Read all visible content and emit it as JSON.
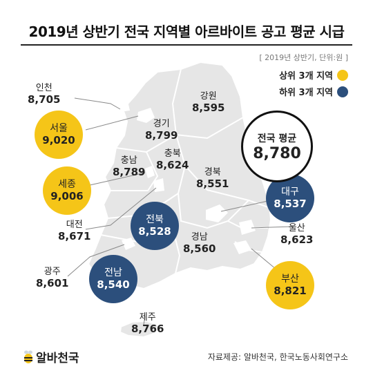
{
  "header": {
    "title": "2019년 상반기 전국 지역별 아르바이트 공고 평균 시급",
    "meta_note": "[ 2019년 상반기, 단위:원 ]"
  },
  "legend": {
    "top_label": "상위 3개 지역",
    "bottom_label": "하위 3개 지역"
  },
  "colors": {
    "top": "#f5c518",
    "bottom": "#2c4f7c",
    "map_fill": "#e6e6e6",
    "map_stroke": "#ffffff"
  },
  "average": {
    "label": "전국 평균",
    "value": "8,780"
  },
  "chart_data": {
    "type": "map",
    "unit": "원",
    "period": "2019년 상반기",
    "regions": [
      {
        "name": "인천",
        "value": 8705,
        "display": "8,705",
        "rank_group": "none"
      },
      {
        "name": "서울",
        "value": 9020,
        "display": "9,020",
        "rank_group": "top"
      },
      {
        "name": "세종",
        "value": 9006,
        "display": "9,006",
        "rank_group": "top"
      },
      {
        "name": "대전",
        "value": 8671,
        "display": "8,671",
        "rank_group": "none"
      },
      {
        "name": "광주",
        "value": 8601,
        "display": "8,601",
        "rank_group": "none"
      },
      {
        "name": "전남",
        "value": 8540,
        "display": "8,540",
        "rank_group": "bottom"
      },
      {
        "name": "전북",
        "value": 8528,
        "display": "8,528",
        "rank_group": "bottom"
      },
      {
        "name": "제주",
        "value": 8766,
        "display": "8,766",
        "rank_group": "none"
      },
      {
        "name": "강원",
        "value": 8595,
        "display": "8,595",
        "rank_group": "none"
      },
      {
        "name": "경기",
        "value": 8799,
        "display": "8,799",
        "rank_group": "none"
      },
      {
        "name": "충남",
        "value": 8789,
        "display": "8,789",
        "rank_group": "none"
      },
      {
        "name": "충북",
        "value": 8624,
        "display": "8,624",
        "rank_group": "none"
      },
      {
        "name": "경북",
        "value": 8551,
        "display": "8,551",
        "rank_group": "none"
      },
      {
        "name": "대구",
        "value": 8537,
        "display": "8,537",
        "rank_group": "bottom"
      },
      {
        "name": "울산",
        "value": 8623,
        "display": "8,623",
        "rank_group": "none"
      },
      {
        "name": "경남",
        "value": 8560,
        "display": "8,560",
        "rank_group": "none"
      },
      {
        "name": "부산",
        "value": 8821,
        "display": "8,821",
        "rank_group": "top"
      }
    ],
    "national_average": 8780
  },
  "footer": {
    "logo_text": "알바천국",
    "source": "자료제공: 알바천국, 한국노동사회연구소"
  }
}
